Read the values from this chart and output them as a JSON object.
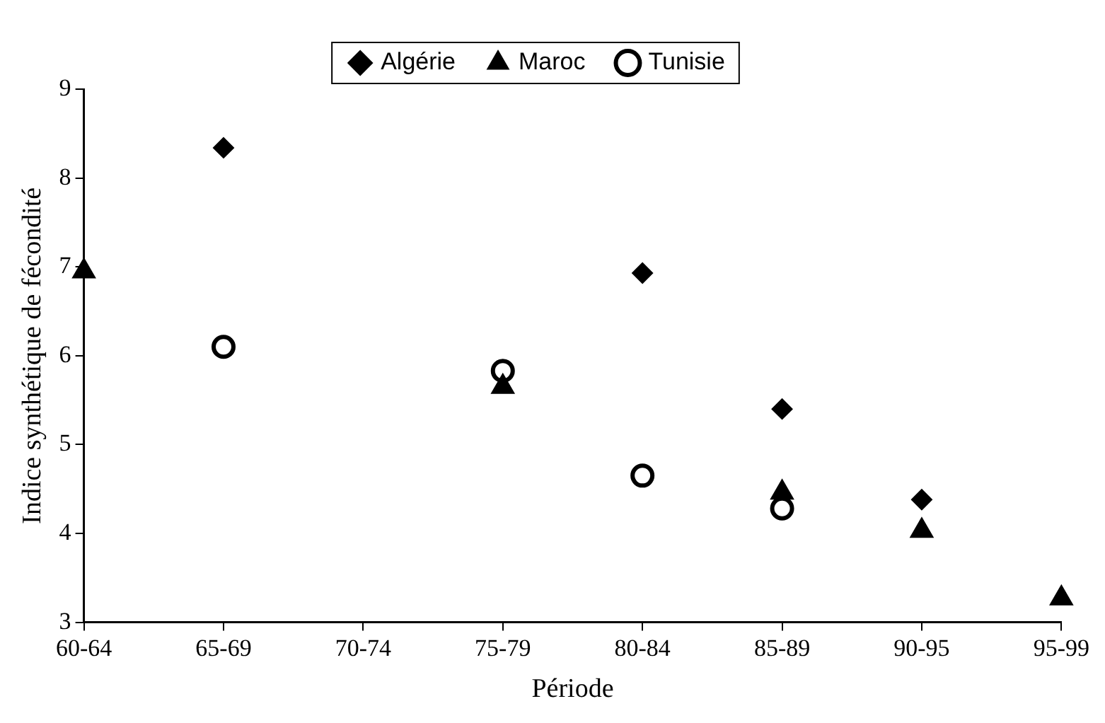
{
  "chart_data": {
    "type": "scatter",
    "xlabel": "Période",
    "ylabel": "Indice synthétique de fécondité",
    "categories": [
      "60-64",
      "65-69",
      "70-74",
      "75-79",
      "80-84",
      "85-89",
      "90-95",
      "95-99"
    ],
    "series": [
      {
        "name": "Algérie",
        "color": "#000000",
        "marker": "diamond",
        "values": [
          null,
          8.34,
          null,
          null,
          6.93,
          5.4,
          4.38,
          null
        ]
      },
      {
        "name": "Maroc",
        "color": "#000000",
        "marker": "triangle",
        "values": [
          6.95,
          null,
          null,
          5.65,
          null,
          4.46,
          4.03,
          3.27
        ]
      },
      {
        "name": "Tunisie",
        "color": "#000000",
        "marker": "circle",
        "values": [
          null,
          6.1,
          null,
          5.83,
          4.65,
          4.28,
          null,
          null
        ]
      }
    ],
    "ylim": [
      3,
      9
    ],
    "yticks": [
      3,
      4,
      5,
      6,
      7,
      8,
      9
    ],
    "grid": false,
    "legend": "top"
  }
}
